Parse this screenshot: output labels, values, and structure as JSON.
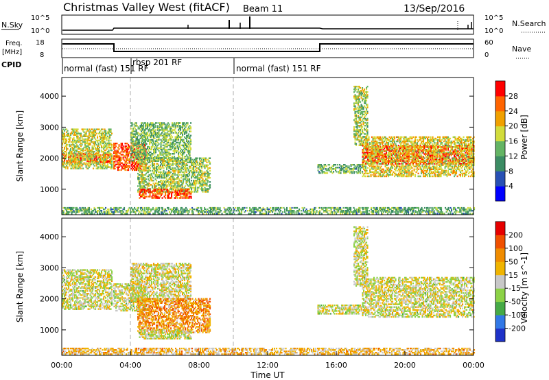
{
  "header": {
    "title": "Christmas Valley West (fitACF)",
    "beam": "Beam 11",
    "date": "13/Sep/2016"
  },
  "strip_panels": {
    "nsky_label": "N.Sky",
    "nsky_ticks": [
      "10^5",
      "10^0"
    ],
    "nsearch_label": "N.Search",
    "nsearch_ticks": [
      "10^5",
      "10^0"
    ],
    "freq_label_1": "Freq.",
    "freq_label_2": "[MHz]",
    "freq_ticks": [
      "18",
      "8"
    ],
    "nave_label": "Nave",
    "nave_ticks": [
      "60",
      "0"
    ],
    "cpid_label": "CPID",
    "cpid_segments": [
      "normal (fast) 151 RF",
      "rbsp 201 RF",
      "normal (fast) 151 RF"
    ]
  },
  "chart_data": [
    {
      "type": "heatmap",
      "name": "power",
      "ylabel": "Slant Range [km]",
      "y_ticks": [
        "1000",
        "2000",
        "3000",
        "4000"
      ],
      "ylim": [
        180,
        4600
      ],
      "xlim_hours": [
        0,
        24
      ],
      "colorbar_label": "Power [dB]",
      "colorbar_ticks": [
        "4",
        "8",
        "12",
        "16",
        "20",
        "24",
        "28"
      ],
      "colors": [
        "#0000ff",
        "#2850b4",
        "#3c8c64",
        "#64b464",
        "#d2dc3c",
        "#f0a000",
        "#ff6400",
        "#ff0000"
      ],
      "regions": [
        {
          "t": [
            0.0,
            2.9
          ],
          "r": [
            1850,
            2150
          ],
          "level": 0.9
        },
        {
          "t": [
            0.0,
            2.9
          ],
          "r": [
            1650,
            2950
          ],
          "level": 0.55
        },
        {
          "t": [
            3.0,
            4.9
          ],
          "r": [
            1600,
            2500
          ],
          "level": 0.85
        },
        {
          "t": [
            4.0,
            7.5
          ],
          "r": [
            1900,
            3150
          ],
          "level": 0.45
        },
        {
          "t": [
            4.4,
            8.6
          ],
          "r": [
            900,
            2000
          ],
          "level": 0.5
        },
        {
          "t": [
            4.5,
            7.5
          ],
          "r": [
            700,
            1000
          ],
          "level": 0.85
        },
        {
          "t": [
            0.0,
            24.0
          ],
          "r": [
            200,
            400
          ],
          "level": 0.4
        },
        {
          "t": [
            14.9,
            17.5
          ],
          "r": [
            1500,
            1800
          ],
          "level": 0.4
        },
        {
          "t": [
            17.0,
            17.8
          ],
          "r": [
            2400,
            4300
          ],
          "level": 0.5
        },
        {
          "t": [
            17.5,
            24.0
          ],
          "r": [
            1800,
            2400
          ],
          "level": 0.95
        },
        {
          "t": [
            17.5,
            24.0
          ],
          "r": [
            1400,
            2700
          ],
          "level": 0.6
        }
      ]
    },
    {
      "type": "heatmap",
      "name": "velocity",
      "ylabel": "Slant Range [km]",
      "y_ticks": [
        "1000",
        "2000",
        "3000",
        "4000"
      ],
      "ylim": [
        180,
        4600
      ],
      "xlim_hours": [
        0,
        24
      ],
      "x_ticks": [
        "00:00",
        "04:00",
        "08:00",
        "12:00",
        "16:00",
        "20:00",
        "00:00"
      ],
      "xlabel": "Time UT",
      "colorbar_label": "Velocity [m s^-1]",
      "colorbar_ticks": [
        "200",
        "100",
        "50",
        "15",
        "-15",
        "-50",
        "-100",
        "-200"
      ],
      "colors": [
        "#1e32c8",
        "#3278e6",
        "#46aa46",
        "#8cd246",
        "#c8c8c8",
        "#f0b400",
        "#f08c00",
        "#f05000",
        "#e60000"
      ],
      "regions": [
        {
          "t": [
            0.0,
            2.9
          ],
          "r": [
            1650,
            2950
          ],
          "level": 0.5
        },
        {
          "t": [
            3.0,
            4.9
          ],
          "r": [
            1600,
            2500
          ],
          "level": 0.5
        },
        {
          "t": [
            4.0,
            7.5
          ],
          "r": [
            1900,
            3150
          ],
          "level": 0.52
        },
        {
          "t": [
            4.4,
            8.6
          ],
          "r": [
            900,
            2000
          ],
          "level": 0.7
        },
        {
          "t": [
            4.5,
            7.5
          ],
          "r": [
            700,
            1000
          ],
          "level": 0.5
        },
        {
          "t": [
            0.0,
            24.0
          ],
          "r": [
            200,
            400
          ],
          "level": 0.62
        },
        {
          "t": [
            14.9,
            17.5
          ],
          "r": [
            1500,
            1800
          ],
          "level": 0.5
        },
        {
          "t": [
            17.0,
            17.8
          ],
          "r": [
            2400,
            4300
          ],
          "level": 0.5
        },
        {
          "t": [
            17.5,
            24.0
          ],
          "r": [
            1400,
            2700
          ],
          "level": 0.5
        }
      ]
    }
  ]
}
